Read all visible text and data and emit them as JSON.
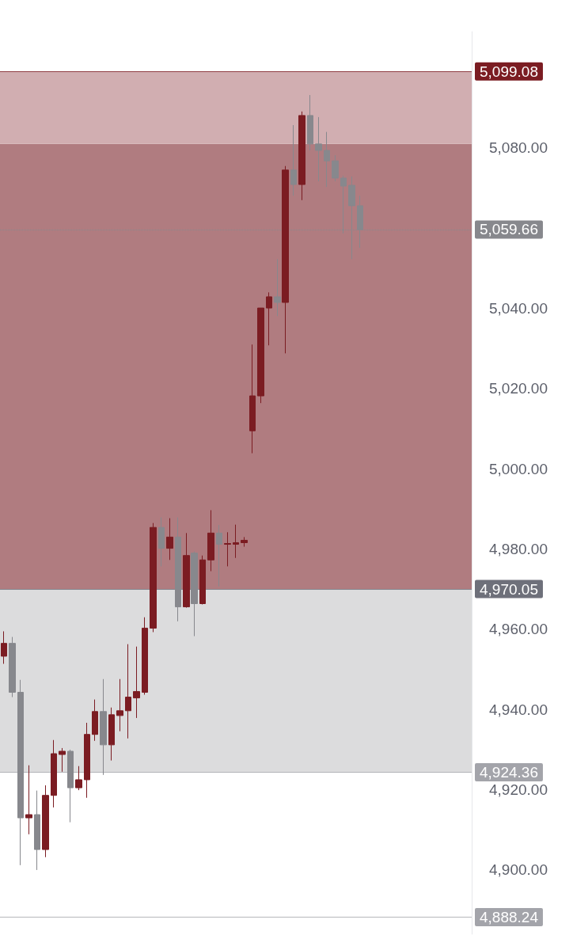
{
  "chart_data": {
    "type": "candlestick",
    "categories": [
      null,
      null,
      null,
      null,
      null,
      null,
      null,
      null,
      null,
      null,
      null,
      null,
      null,
      null,
      null,
      null,
      null,
      null,
      null,
      null,
      null,
      null,
      null,
      null,
      null,
      null,
      null,
      null,
      null,
      null,
      null,
      null,
      null,
      null,
      null,
      null,
      null,
      null,
      null,
      null,
      null,
      null,
      null,
      null,
      null,
      null,
      null,
      null,
      null,
      null,
      null,
      null,
      null,
      null,
      null,
      null,
      null
    ],
    "ohlc": [
      [
        4953.3,
        4959.5,
        4951.4,
        4956.5
      ],
      [
        4956.5,
        4958.1,
        4943.1,
        4944.3
      ],
      [
        4944.3,
        4947.4,
        4901.2,
        4913.0
      ],
      [
        4913.0,
        4926.1,
        4908.9,
        4913.8
      ],
      [
        4913.8,
        4919.8,
        4900.0,
        4905.1
      ],
      [
        4905.1,
        4921.1,
        4903.2,
        4918.6
      ],
      [
        4918.6,
        4932.4,
        4915.6,
        4929.0
      ],
      [
        4928.8,
        4930.4,
        4924.5,
        4929.6
      ],
      [
        4929.6,
        4930.0,
        4911.9,
        4920.5
      ],
      [
        4920.5,
        4925.9,
        4919.9,
        4922.5
      ],
      [
        4922.5,
        4936.7,
        4918.0,
        4933.8
      ],
      [
        4933.8,
        4942.5,
        4932.2,
        4939.5
      ],
      [
        4939.5,
        4947.6,
        4923.7,
        4931.2
      ],
      [
        4931.2,
        4940.5,
        4927.3,
        4938.7
      ],
      [
        4938.5,
        4947.6,
        4934.6,
        4939.7
      ],
      [
        4939.7,
        4956.3,
        4932.8,
        4943.1
      ],
      [
        4942.9,
        4955.7,
        4937.9,
        4944.5
      ],
      [
        4944.3,
        4963.0,
        4943.7,
        4960.3
      ],
      [
        4960.3,
        4986.5,
        4959.3,
        4985.4
      ],
      [
        4985.4,
        4987.9,
        4975.7,
        4980.2
      ],
      [
        4980.2,
        4987.7,
        4977.3,
        4983.0
      ],
      [
        4983.0,
        4987.9,
        4962.0,
        4965.6
      ],
      [
        4965.6,
        4984.0,
        4965.4,
        4978.4
      ],
      [
        4979.0,
        4979.4,
        4958.3,
        4966.4
      ],
      [
        4966.4,
        4978.4,
        4966.2,
        4977.3
      ],
      [
        4977.3,
        4989.7,
        4974.5,
        4984.0
      ],
      [
        4984.0,
        4986.0,
        4970.7,
        4981.2
      ],
      [
        4981.2,
        4984.2,
        4975.7,
        4981.4
      ],
      [
        4981.2,
        4986.1,
        4977.8,
        4981.6
      ],
      [
        4981.6,
        4983.0,
        4980.6,
        4982.2
      ],
      [
        5009.5,
        5031.0,
        5003.9,
        5018.2
      ],
      [
        5018.2,
        5040.1,
        5016.4,
        5040.1
      ],
      [
        5040.1,
        5044.0,
        5030.8,
        5042.9
      ],
      [
        5042.9,
        5052.3,
        5038.1,
        5041.5
      ],
      [
        5041.5,
        5075.5,
        5028.8,
        5074.5
      ],
      [
        5074.5,
        5085.7,
        5068.1,
        5070.9
      ],
      [
        5070.9,
        5089.1,
        5067.0,
        5088.1
      ],
      [
        5088.1,
        5093.2,
        5079.4,
        5081.0
      ],
      [
        5081.0,
        5087.7,
        5071.7,
        5079.4
      ],
      [
        5079.4,
        5084.0,
        5070.3,
        5076.8
      ],
      [
        5076.8,
        5078.2,
        5071.7,
        5072.5
      ],
      [
        5072.5,
        5073.1,
        5058.7,
        5070.5
      ],
      [
        5070.7,
        5072.9,
        5052.3,
        5065.6
      ],
      [
        5065.6,
        5068.1,
        5055.1,
        5059.66
      ],
      null,
      null,
      null,
      null,
      null,
      null,
      null,
      null,
      null,
      null,
      null,
      null,
      null
    ],
    "colors": [
      "#7b1c22",
      "#87888d",
      "#87888d",
      "#7b1c22",
      "#87888d",
      "#7b1c22",
      "#7b1c22",
      "#7b1c22",
      "#87888d",
      "#7b1c22",
      "#7b1c22",
      "#7b1c22",
      "#87888d",
      "#7b1c22",
      "#7b1c22",
      "#7b1c22",
      "#7b1c22",
      "#7b1c22",
      "#7b1c22",
      "#87888d",
      "#7b1c22",
      "#87888d",
      "#7b1c22",
      "#87888d",
      "#7b1c22",
      "#7b1c22",
      "#87888d",
      "#7b1c22",
      "#7b1c22",
      "#7b1c22",
      "#7b1c22",
      "#7b1c22",
      "#7b1c22",
      "#87888d",
      "#7b1c22",
      "#87888d",
      "#7b1c22",
      "#87888d",
      "#87888d",
      "#87888d",
      "#87888d",
      "#87888d",
      "#87888d",
      "#87888d",
      null,
      null,
      null,
      null,
      null,
      null,
      null,
      null,
      null,
      null,
      null,
      null,
      null
    ],
    "ylim": [
      4884,
      5109
    ],
    "yticks": [
      {
        "value": 4900,
        "label": "4,900.00"
      },
      {
        "value": 4920,
        "label": "4,920.00"
      },
      {
        "value": 4940,
        "label": "4,940.00"
      },
      {
        "value": 4960,
        "label": "4,960.00"
      },
      {
        "value": 4980,
        "label": "4,980.00"
      },
      {
        "value": 5000,
        "label": "5,000.00"
      },
      {
        "value": 5020,
        "label": "5,020.00"
      },
      {
        "value": 5040,
        "label": "5,040.00"
      },
      {
        "value": 5080,
        "label": "5,080.00"
      }
    ],
    "bands": [
      {
        "axis": "y",
        "from": 4970.05,
        "to": 5081.0,
        "color": "#b07c80"
      },
      {
        "axis": "y",
        "from": 5081.0,
        "to": 5099.08,
        "color": "#d1aeb1"
      },
      {
        "axis": "y",
        "from": 4924.36,
        "to": 4970.05,
        "color": "#dcdcdd"
      }
    ],
    "ref_lines": [
      {
        "axis": "y",
        "value": 5099.08,
        "label": "5,099.08",
        "color": "#7b1c22",
        "line_style": "solid"
      },
      {
        "axis": "y",
        "value": 5059.66,
        "label": "5,059.66",
        "color": "#87888d",
        "line_style": "dotted"
      },
      {
        "axis": "y",
        "value": 4970.05,
        "label": "4,970.05",
        "color": "#6e707a",
        "line_style": "solid"
      },
      {
        "axis": "y",
        "value": 4924.36,
        "label": "4,924.36",
        "color": "#a3a4aa",
        "line_style": "solid"
      },
      {
        "axis": "y",
        "value": 4888.24,
        "label": "4,888.24",
        "color": "#a3a4aa",
        "line_style": "solid"
      }
    ],
    "tick_labels": "y",
    "grid": false
  }
}
